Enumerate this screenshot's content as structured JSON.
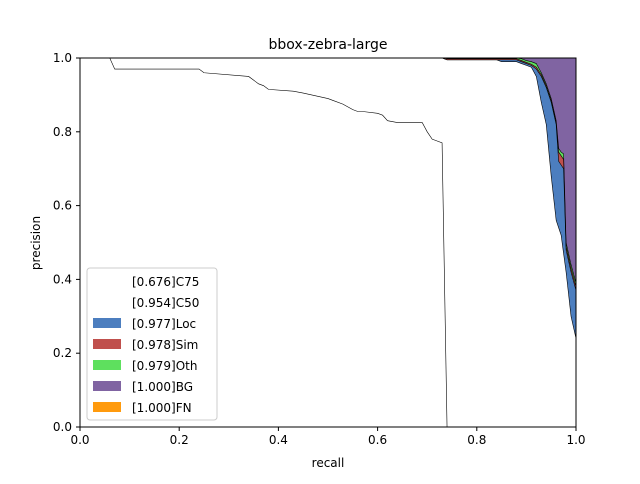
{
  "chart_data": {
    "type": "area",
    "title": "bbox-zebra-large",
    "xlabel": "recall",
    "ylabel": "precision",
    "xlim": [
      0,
      1
    ],
    "ylim": [
      0,
      1
    ],
    "xticks": [
      "0.0",
      "0.2",
      "0.4",
      "0.6",
      "0.8",
      "1.0"
    ],
    "yticks": [
      "0.0",
      "0.2",
      "0.4",
      "0.6",
      "0.8",
      "1.0"
    ],
    "grid": false,
    "legend_position": "lower-left",
    "series": [
      {
        "name": "[0.676]C75",
        "color": "#ffffff",
        "x": [
          0,
          0.06,
          0.07,
          0.24,
          0.25,
          0.34,
          0.36,
          0.37,
          0.38,
          0.43,
          0.45,
          0.5,
          0.51,
          0.53,
          0.55,
          0.56,
          0.57,
          0.6,
          0.61,
          0.62,
          0.64,
          0.69,
          0.7,
          0.71,
          0.72,
          0.73,
          0.74,
          0.75,
          0.76,
          1.0
        ],
        "y": [
          1.0,
          1.0,
          0.97,
          0.97,
          0.96,
          0.95,
          0.93,
          0.925,
          0.915,
          0.91,
          0.905,
          0.89,
          0.885,
          0.875,
          0.86,
          0.855,
          0.855,
          0.85,
          0.845,
          0.83,
          0.825,
          0.825,
          0.8,
          0.78,
          0.775,
          0.77,
          0.0,
          0.0,
          0.0,
          0.0
        ]
      },
      {
        "name": "[0.954]C50",
        "color": "#ffffff",
        "x": [
          0,
          0.73,
          0.74,
          0.84,
          0.85,
          0.86,
          0.87,
          0.88,
          0.89,
          0.9,
          0.91,
          0.92,
          0.93,
          0.94,
          0.95,
          0.96,
          0.97,
          0.98,
          0.99,
          1.0
        ],
        "y": [
          1.0,
          1.0,
          0.995,
          0.995,
          0.99,
          0.99,
          0.99,
          0.99,
          0.985,
          0.98,
          0.975,
          0.95,
          0.88,
          0.82,
          0.68,
          0.56,
          0.52,
          0.42,
          0.3,
          0.24
        ]
      },
      {
        "name": "[0.977]Loc",
        "color": "#4c7ebf",
        "x": [
          0,
          0.73,
          0.74,
          0.85,
          0.86,
          0.87,
          0.88,
          0.89,
          0.9,
          0.91,
          0.92,
          0.93,
          0.94,
          0.95,
          0.96,
          0.965,
          0.97,
          0.975,
          0.98,
          0.99,
          1.0
        ],
        "y": [
          1.0,
          1.0,
          0.995,
          0.995,
          0.995,
          0.995,
          0.995,
          0.99,
          0.985,
          0.98,
          0.97,
          0.95,
          0.92,
          0.88,
          0.82,
          0.72,
          0.71,
          0.7,
          0.48,
          0.42,
          0.37
        ]
      },
      {
        "name": "[0.978]Sim",
        "color": "#c0504d",
        "x": [
          0,
          0.73,
          0.74,
          0.86,
          0.88,
          0.89,
          0.9,
          0.91,
          0.92,
          0.93,
          0.94,
          0.95,
          0.96,
          0.965,
          0.97,
          0.975,
          0.98,
          0.99,
          1.0
        ],
        "y": [
          1.0,
          1.0,
          0.998,
          0.998,
          0.998,
          0.993,
          0.988,
          0.983,
          0.975,
          0.955,
          0.925,
          0.885,
          0.825,
          0.745,
          0.735,
          0.725,
          0.49,
          0.43,
          0.38
        ]
      },
      {
        "name": "[0.979]Oth",
        "color": "#5ee05e",
        "x": [
          0,
          0.73,
          0.74,
          0.86,
          0.88,
          0.89,
          0.9,
          0.91,
          0.92,
          0.93,
          0.94,
          0.95,
          0.96,
          0.965,
          0.97,
          0.975,
          0.98,
          0.99,
          1.0
        ],
        "y": [
          1.0,
          1.0,
          1.0,
          1.0,
          1.0,
          0.998,
          0.993,
          0.99,
          0.985,
          0.96,
          0.93,
          0.89,
          0.83,
          0.755,
          0.745,
          0.74,
          0.5,
          0.44,
          0.39
        ]
      },
      {
        "name": "[1.000]BG",
        "color": "#8064a2",
        "x": [
          0,
          1.0
        ],
        "y": [
          1.0,
          1.0
        ]
      },
      {
        "name": "[1.000]FN",
        "color": "#ff9a0d",
        "x": [
          0,
          1.0
        ],
        "y": [
          1.0,
          1.0
        ]
      }
    ]
  }
}
